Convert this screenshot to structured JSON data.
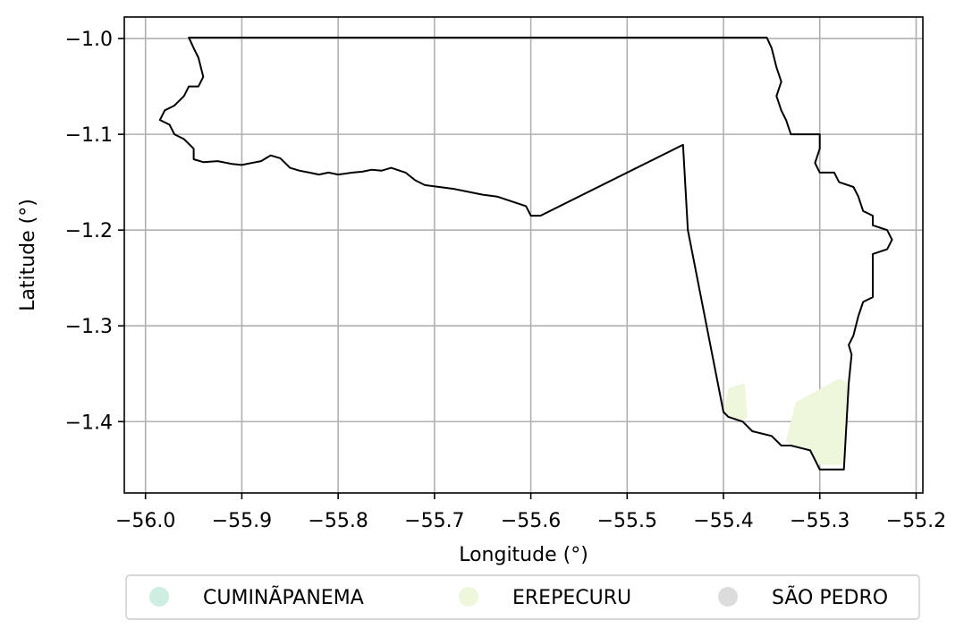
{
  "colors": {
    "background": "#ffffff",
    "grid": "#b0b0b0",
    "outline": "#000000",
    "erepecuru_fill": "#eef7dc",
    "legend_border": "#cccccc"
  },
  "chart_data": {
    "type": "choropleth-map",
    "title": "",
    "xlabel": "Longitude (°)",
    "ylabel": "Latitude (°)",
    "xlim": [
      -56.022,
      -55.193
    ],
    "ylim": [
      -1.4745,
      -0.9775
    ],
    "x_ticks": [
      -56.0,
      -55.9,
      -55.8,
      -55.7,
      -55.6,
      -55.5,
      -55.4,
      -55.3,
      -55.2
    ],
    "x_tick_labels": [
      "−56.0",
      "−55.9",
      "−55.8",
      "−55.7",
      "−55.6",
      "−55.5",
      "−55.4",
      "−55.3",
      "−55.2"
    ],
    "y_ticks": [
      -1.0,
      -1.1,
      -1.2,
      -1.3,
      -1.4
    ],
    "y_tick_labels": [
      "−1.0",
      "−1.1",
      "−1.2",
      "−1.3",
      "−1.4"
    ],
    "grid": true,
    "legend": {
      "placement": "below-center",
      "entries": [
        {
          "label": "CUMINÃPANEMA",
          "color": "#cdeee0"
        },
        {
          "label": "EREPECURU",
          "color": "#eef7dc"
        },
        {
          "label": "SÃO PEDRO",
          "color": "#dcdcdc"
        }
      ]
    },
    "boundary": [
      [
        -55.955,
        -0.999
      ],
      [
        -55.355,
        -0.999
      ],
      [
        -55.35,
        -1.01
      ],
      [
        -55.345,
        -1.03
      ],
      [
        -55.34,
        -1.045
      ],
      [
        -55.345,
        -1.06
      ],
      [
        -55.34,
        -1.075
      ],
      [
        -55.335,
        -1.085
      ],
      [
        -55.33,
        -1.1
      ],
      [
        -55.3,
        -1.1
      ],
      [
        -55.3,
        -1.115
      ],
      [
        -55.305,
        -1.13
      ],
      [
        -55.3,
        -1.14
      ],
      [
        -55.285,
        -1.14
      ],
      [
        -55.28,
        -1.15
      ],
      [
        -55.265,
        -1.155
      ],
      [
        -55.26,
        -1.165
      ],
      [
        -55.255,
        -1.18
      ],
      [
        -55.245,
        -1.185
      ],
      [
        -55.245,
        -1.195
      ],
      [
        -55.23,
        -1.2
      ],
      [
        -55.225,
        -1.21
      ],
      [
        -55.23,
        -1.22
      ],
      [
        -55.245,
        -1.225
      ],
      [
        -55.245,
        -1.245
      ],
      [
        -55.245,
        -1.27
      ],
      [
        -55.255,
        -1.275
      ],
      [
        -55.26,
        -1.29
      ],
      [
        -55.265,
        -1.31
      ],
      [
        -55.27,
        -1.32
      ],
      [
        -55.267,
        -1.33
      ],
      [
        -55.27,
        -1.36
      ],
      [
        -55.275,
        -1.45
      ],
      [
        -55.3,
        -1.45
      ],
      [
        -55.305,
        -1.44
      ],
      [
        -55.31,
        -1.43
      ],
      [
        -55.33,
        -1.425
      ],
      [
        -55.34,
        -1.425
      ],
      [
        -55.35,
        -1.415
      ],
      [
        -55.37,
        -1.41
      ],
      [
        -55.38,
        -1.4
      ],
      [
        -55.395,
        -1.395
      ],
      [
        -55.4,
        -1.39
      ],
      [
        -55.437,
        -1.2
      ],
      [
        -55.442,
        -1.111
      ],
      [
        -55.59,
        -1.185
      ],
      [
        -55.6,
        -1.185
      ],
      [
        -55.605,
        -1.175
      ],
      [
        -55.62,
        -1.17
      ],
      [
        -55.635,
        -1.165
      ],
      [
        -55.65,
        -1.163
      ],
      [
        -55.665,
        -1.16
      ],
      [
        -55.68,
        -1.157
      ],
      [
        -55.695,
        -1.155
      ],
      [
        -55.71,
        -1.153
      ],
      [
        -55.72,
        -1.148
      ],
      [
        -55.73,
        -1.14
      ],
      [
        -55.745,
        -1.135
      ],
      [
        -55.755,
        -1.138
      ],
      [
        -55.765,
        -1.137
      ],
      [
        -55.775,
        -1.139
      ],
      [
        -55.785,
        -1.14
      ],
      [
        -55.8,
        -1.142
      ],
      [
        -55.81,
        -1.14
      ],
      [
        -55.82,
        -1.142
      ],
      [
        -55.83,
        -1.14
      ],
      [
        -55.84,
        -1.138
      ],
      [
        -55.85,
        -1.135
      ],
      [
        -55.86,
        -1.125
      ],
      [
        -55.87,
        -1.122
      ],
      [
        -55.875,
        -1.125
      ],
      [
        -55.88,
        -1.128
      ],
      [
        -55.89,
        -1.13
      ],
      [
        -55.9,
        -1.132
      ],
      [
        -55.91,
        -1.131
      ],
      [
        -55.925,
        -1.128
      ],
      [
        -55.94,
        -1.129
      ],
      [
        -55.95,
        -1.126
      ],
      [
        -55.95,
        -1.115
      ],
      [
        -55.96,
        -1.105
      ],
      [
        -55.97,
        -1.1
      ],
      [
        -55.975,
        -1.09
      ],
      [
        -55.985,
        -1.085
      ],
      [
        -55.98,
        -1.075
      ],
      [
        -55.97,
        -1.07
      ],
      [
        -55.96,
        -1.06
      ],
      [
        -55.955,
        -1.05
      ],
      [
        -55.945,
        -1.05
      ],
      [
        -55.94,
        -1.04
      ],
      [
        -55.945,
        -1.02
      ],
      [
        -55.95,
        -1.01
      ],
      [
        -55.955,
        -0.999
      ]
    ],
    "erepecuru_patches": [
      [
        [
          -55.4,
          -1.39
        ],
        [
          -55.395,
          -1.365
        ],
        [
          -55.378,
          -1.36
        ],
        [
          -55.375,
          -1.395
        ],
        [
          -55.38,
          -1.4
        ],
        [
          -55.395,
          -1.395
        ]
      ],
      [
        [
          -55.325,
          -1.38
        ],
        [
          -55.28,
          -1.355
        ],
        [
          -55.27,
          -1.36
        ],
        [
          -55.275,
          -1.445
        ],
        [
          -55.3,
          -1.445
        ],
        [
          -55.305,
          -1.44
        ],
        [
          -55.31,
          -1.43
        ],
        [
          -55.33,
          -1.425
        ],
        [
          -55.335,
          -1.42
        ]
      ]
    ]
  }
}
